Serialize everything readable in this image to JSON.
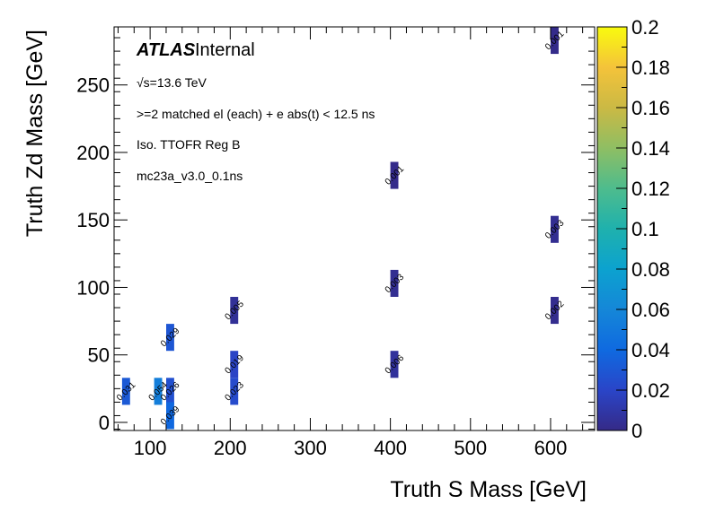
{
  "chart_data": {
    "type": "heatmap",
    "title": "",
    "xlabel": "Truth S Mass [GeV]",
    "ylabel": "Truth Zd Mass [GeV]",
    "xlim": [
      55,
      655
    ],
    "ylim": [
      -6,
      293
    ],
    "xticks": [
      "100",
      "200",
      "300",
      "400",
      "500",
      "600"
    ],
    "yticks": [
      "0",
      "50",
      "100",
      "150",
      "200",
      "250"
    ],
    "zlim": [
      0,
      0.2
    ],
    "zticks": [
      "0",
      "0.02",
      "0.04",
      "0.06",
      "0.08",
      "0.1",
      "0.12",
      "0.14",
      "0.16",
      "0.18",
      "0.2"
    ],
    "colormap": "parula",
    "cells": [
      {
        "x": 70,
        "y": 23,
        "value": 0.031,
        "label": "0.031"
      },
      {
        "x": 110,
        "y": 23,
        "value": 0.054,
        "label": "0.054"
      },
      {
        "x": 125,
        "y": 23,
        "value": 0.026,
        "label": "0.026"
      },
      {
        "x": 125,
        "y": 5,
        "value": 0.039,
        "label": "0.039"
      },
      {
        "x": 125,
        "y": 63,
        "value": 0.029,
        "label": "0.029"
      },
      {
        "x": 205,
        "y": 23,
        "value": 0.023,
        "label": "0.023"
      },
      {
        "x": 205,
        "y": 43,
        "value": 0.019,
        "label": "0.019"
      },
      {
        "x": 205,
        "y": 83,
        "value": 0.005,
        "label": "0.005"
      },
      {
        "x": 405,
        "y": 43,
        "value": 0.006,
        "label": "0.006"
      },
      {
        "x": 405,
        "y": 103,
        "value": 0.003,
        "label": "0.003"
      },
      {
        "x": 405,
        "y": 183,
        "value": 0.001,
        "label": "0.001"
      },
      {
        "x": 605,
        "y": 83,
        "value": 0.002,
        "label": "0.002"
      },
      {
        "x": 605,
        "y": 143,
        "value": 0.003,
        "label": "0.003"
      },
      {
        "x": 605,
        "y": 283,
        "value": 0.001,
        "label": "0.001"
      }
    ],
    "annotations": {
      "experiment": "ATLAS",
      "status": "Internal",
      "energy": "√s=13.6 TeV",
      "selection": ">=2 matched el (each) + e abs(t) < 12.5 ns",
      "region": "Iso. TTOFR Reg B",
      "sample": "mc23a_v3.0_0.1ns"
    }
  }
}
